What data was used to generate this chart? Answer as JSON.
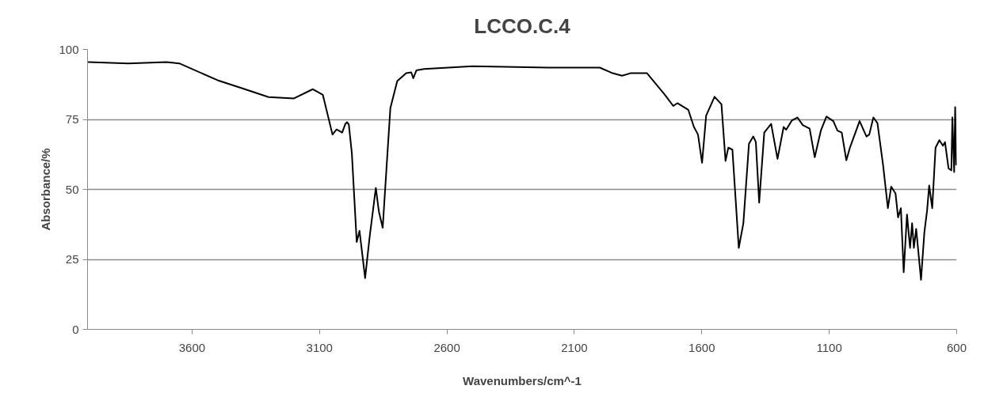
{
  "chart_data": {
    "type": "line",
    "title": "LCCO.C.4",
    "xlabel": "Wavenumbers/cm^-1",
    "ylabel": "Absorbance/%",
    "xlim": [
      4010,
      600
    ],
    "xticks": [
      3600,
      3100,
      2600,
      2100,
      1600,
      1100,
      600
    ],
    "ylim": [
      0,
      100
    ],
    "yticks": [
      0,
      25,
      50,
      75,
      100
    ],
    "grid": "y",
    "marker": "none",
    "line_style": "solid",
    "series": [
      {
        "color": "#000000",
        "x": [
          4006,
          3850,
          3700,
          3650,
          3500,
          3400,
          3300,
          3200,
          3126,
          3087,
          3049,
          3033,
          3011,
          2999,
          2992,
          2985,
          2973,
          2954,
          2943,
          2921,
          2903,
          2879,
          2867,
          2852,
          2838,
          2822,
          2795,
          2760,
          2740,
          2732,
          2720,
          2690,
          2500,
          2200,
          2000,
          1950,
          1913,
          1880,
          1815,
          1745,
          1712,
          1696,
          1653,
          1631,
          1615,
          1599,
          1583,
          1550,
          1523,
          1507,
          1496,
          1480,
          1455,
          1437,
          1415,
          1398,
          1388,
          1375,
          1355,
          1328,
          1303,
          1279,
          1269,
          1247,
          1225,
          1204,
          1177,
          1157,
          1133,
          1111,
          1084,
          1068,
          1051,
          1033,
          1019,
          1003,
          981,
          954,
          943,
          927,
          911,
          889,
          870,
          857,
          840,
          830,
          819,
          808,
          795,
          783,
          775,
          768,
          759,
          740,
          727,
          716,
          708,
          696,
          683,
          668,
          654,
          646,
          632,
          621,
          617,
          610,
          606,
          602
        ],
        "values": [
          95.5,
          95,
          95.5,
          95,
          89,
          86,
          83,
          82.5,
          85.8,
          83.8,
          69.6,
          71.4,
          70.3,
          73.3,
          74,
          73.2,
          62.9,
          31.2,
          35.2,
          18.3,
          33.2,
          50.5,
          42.1,
          36.3,
          56.3,
          79,
          88.7,
          91.5,
          91.8,
          89.7,
          92.5,
          93,
          94,
          93.5,
          93.5,
          91.5,
          90.6,
          91.5,
          91.5,
          83.8,
          79.8,
          80.8,
          78.4,
          72.3,
          69.6,
          59.5,
          76.4,
          83.1,
          80.4,
          60.2,
          64.9,
          64.2,
          29.1,
          37.9,
          66.3,
          68.9,
          66.9,
          45.3,
          70.3,
          73.4,
          60.9,
          72.3,
          71.3,
          74.6,
          75.7,
          73,
          71.7,
          61.5,
          71,
          76,
          74.4,
          71,
          70.3,
          60.4,
          64.9,
          68.9,
          74.4,
          68.9,
          69.6,
          75.7,
          73.7,
          58.8,
          43.3,
          51,
          48.5,
          40,
          43.3,
          20.4,
          41,
          29.1,
          37.9,
          29.1,
          35.9,
          17.7,
          34.5,
          42.6,
          51.4,
          43.3,
          64.9,
          67.6,
          65.6,
          66.9,
          57.5,
          56.8,
          75.7,
          56.2,
          79.4,
          58.8
        ]
      }
    ]
  }
}
